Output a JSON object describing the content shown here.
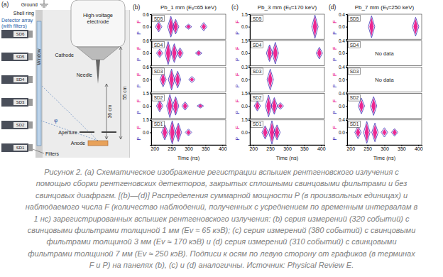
{
  "diagram": {
    "panel_label": "(a)",
    "ground": "Ground",
    "shell_ring": "Shell ring",
    "detector_array": [
      "Detector array",
      "(with filters)"
    ],
    "electrode": [
      "High-voltage",
      "electrode"
    ],
    "window": "Window",
    "cathode": "Cathode",
    "needle": "Needle",
    "distance_short": "36 cm",
    "distance_long": "55 cm",
    "angle": "φ",
    "aperture": "Aperture",
    "anode": "Anode",
    "filters": "Filters",
    "detectors": [
      "SD6",
      "SD5",
      "SD4",
      "SD3",
      "SD2",
      "SD1"
    ]
  },
  "chart_data": [
    {
      "type": "violin",
      "panel_label": "(b)",
      "title": "Pb_1 mm (Eᵥ≈65 keV)",
      "x_label": "Time (ns)",
      "xlim": [
        190,
        410
      ],
      "xticks": [
        200,
        250,
        300,
        350,
        400
      ],
      "subplots": [
        {
          "label": "SD5",
          "ylim": [
            -0.6,
            0.6
          ],
          "yticks": [
            {
              "value": 0,
              "label": "0.0"
            },
            0.6
          ],
          "x": [
            212,
            248,
            262,
            300,
            345
          ],
          "series": [
            {
              "name": "F",
              "color": "#e6007e",
              "values": [
                0.2,
                0.45,
                0.3,
                0.1,
                0.15
              ]
            },
            {
              "name": "P",
              "color": "#3b2fb5",
              "values": [
                0.25,
                0.5,
                0.35,
                0.12,
                0.2
              ]
            }
          ]
        },
        {
          "label": "SD4",
          "ylim": [
            -0.6,
            0.6
          ],
          "yticks": [
            {
              "value": 0,
              "label": "0.0"
            },
            0.6
          ],
          "x": [
            215,
            240,
            258,
            275,
            330
          ],
          "series": [
            {
              "name": "F",
              "color": "#e6007e",
              "values": [
                0.15,
                0.5,
                0.4,
                0.2,
                0.1
              ]
            },
            {
              "name": "P",
              "color": "#3b2fb5",
              "values": [
                0.2,
                0.55,
                0.45,
                0.25,
                0.12
              ]
            }
          ]
        },
        {
          "label": "SD3",
          "ylim": [
            -0.6,
            0.6
          ],
          "yticks": [
            {
              "value": 0,
              "label": "0.0"
            },
            0.6
          ],
          "x": [
            225,
            250,
            268,
            310
          ],
          "series": [
            {
              "name": "F",
              "color": "#e6007e",
              "values": [
                0.3,
                0.45,
                0.35,
                0.1
              ]
            },
            {
              "name": "P",
              "color": "#3b2fb5",
              "values": [
                0.35,
                0.5,
                0.4,
                0.15
              ]
            }
          ]
        },
        {
          "label": "SD2",
          "ylim": [
            -1.5,
            1.5
          ],
          "yticks": [
            {
              "value": 0,
              "label": "0.0"
            },
            1.5
          ],
          "x": [
            215,
            245,
            262,
            290,
            335
          ],
          "series": [
            {
              "name": "F",
              "color": "#e6007e",
              "values": [
                0.6,
                1.2,
                1.0,
                0.4,
                0.2
              ]
            },
            {
              "name": "P",
              "color": "#3b2fb5",
              "values": [
                0.7,
                1.4,
                1.1,
                0.5,
                0.25
              ]
            }
          ]
        },
        {
          "label": "SD1",
          "ylim": [
            -1.5,
            1.5
          ],
          "yticks": [
            {
              "value": 0,
              "label": "0.0"
            },
            1.5
          ],
          "x": [
            230,
            252,
            270,
            300
          ],
          "series": [
            {
              "name": "F",
              "color": "#e6007e",
              "values": [
                0.8,
                1.3,
                1.0,
                0.3
              ]
            },
            {
              "name": "P",
              "color": "#3b2fb5",
              "values": [
                0.9,
                1.4,
                1.1,
                0.4
              ]
            }
          ]
        }
      ]
    },
    {
      "type": "violin",
      "panel_label": "(c)",
      "title": "Pb_3 mm (Eᵥ≈170 keV)",
      "x_label": "Time (ns)",
      "xlim": [
        190,
        410
      ],
      "xticks": [
        200,
        250,
        300,
        350,
        400
      ],
      "subplots": [
        {
          "label": "SD5",
          "ylim": [
            -1.5,
            1.5
          ],
          "yticks": [
            {
              "value": 0,
              "label": "0.0"
            },
            1.5
          ],
          "x": [
            382
          ],
          "series": [
            {
              "name": "F",
              "color": "#e6007e",
              "values": [
                1.2
              ]
            },
            {
              "name": "P",
              "color": "#3b2fb5",
              "values": [
                1.4
              ]
            }
          ]
        },
        {
          "label": "SD4",
          "ylim": [
            -1.5,
            1.5
          ],
          "yticks": [
            {
              "value": 0,
              "label": "0.0"
            },
            1.5
          ],
          "x": [
            248,
            265,
            395
          ],
          "series": [
            {
              "name": "F",
              "color": "#e6007e",
              "values": [
                0.9,
                1.1,
                0.6
              ]
            },
            {
              "name": "P",
              "color": "#3b2fb5",
              "values": [
                1.0,
                1.3,
                0.7
              ]
            }
          ]
        },
        {
          "label": "SD3",
          "ylim": [
            -0.3,
            0.3
          ],
          "yticks": [
            {
              "value": 0,
              "label": "0.0"
            },
            0.3
          ],
          "x": [
            250
          ],
          "series": [
            {
              "name": "F",
              "color": "#e6007e",
              "values": [
                0.2
              ]
            },
            {
              "name": "P",
              "color": "#3b2fb5",
              "values": [
                0.25
              ]
            }
          ]
        },
        {
          "label": "SD2",
          "ylim": [
            -1.5,
            1.5
          ],
          "yticks": [
            {
              "value": 0,
              "label": "0.0"
            },
            1.5
          ],
          "x": [
            212,
            245,
            262,
            280
          ],
          "series": [
            {
              "name": "F",
              "color": "#e6007e",
              "values": [
                0.5,
                1.1,
                0.9,
                0.3
              ]
            },
            {
              "name": "P",
              "color": "#3b2fb5",
              "values": [
                0.6,
                1.3,
                1.0,
                0.4
              ]
            }
          ]
        },
        {
          "label": "SD1",
          "ylim": [
            -1.5,
            1.5
          ],
          "yticks": [
            {
              "value": 0,
              "label": "0.0"
            },
            1.5
          ],
          "x": [
            235,
            255,
            270
          ],
          "series": [
            {
              "name": "F",
              "color": "#e6007e",
              "values": [
                0.7,
                1.2,
                0.8
              ]
            },
            {
              "name": "P",
              "color": "#3b2fb5",
              "values": [
                0.8,
                1.4,
                0.9
              ]
            }
          ]
        }
      ]
    },
    {
      "type": "violin",
      "panel_label": "(d)",
      "title": "Pb_7 mm (Eᵥ≈250 keV)",
      "x_label": "Time (ns)",
      "xlim": [
        190,
        410
      ],
      "xticks": [
        200,
        250,
        300,
        350,
        400
      ],
      "subplots": [
        {
          "label": "SD5",
          "ylim": [
            -0.4,
            0.4
          ],
          "yticks": [
            {
              "value": 0,
              "label": "0.0"
            },
            0.4
          ],
          "x": [
            262,
            392
          ],
          "series": [
            {
              "name": "F",
              "color": "#e6007e",
              "values": [
                0.3,
                0.25
              ]
            },
            {
              "name": "P",
              "color": "#3b2fb5",
              "values": [
                0.35,
                0.3
              ]
            }
          ]
        },
        {
          "label": "SD4",
          "ylim": [
            -0.4,
            0.4
          ],
          "yticks": [
            {
              "value": 0,
              "label": "0.0"
            },
            0.4
          ],
          "x": [],
          "annotation": "No data",
          "series": [
            {
              "name": "F",
              "color": "#e6007e",
              "values": []
            },
            {
              "name": "P",
              "color": "#3b2fb5",
              "values": []
            }
          ]
        },
        {
          "label": "SD3",
          "ylim": [
            -0.4,
            0.4
          ],
          "yticks": [
            {
              "value": 0,
              "label": "0.0"
            },
            0.4
          ],
          "x": [],
          "annotation": "No data",
          "series": [
            {
              "name": "F",
              "color": "#e6007e",
              "values": []
            },
            {
              "name": "P",
              "color": "#3b2fb5",
              "values": []
            }
          ]
        },
        {
          "label": "SD2",
          "ylim": [
            -0.4,
            0.4
          ],
          "yticks": [
            {
              "value": 0,
              "label": "0.0"
            },
            0.4
          ],
          "x": [
            232,
            268
          ],
          "series": [
            {
              "name": "F",
              "color": "#e6007e",
              "values": [
                0.2,
                0.25
              ]
            },
            {
              "name": "P",
              "color": "#3b2fb5",
              "values": [
                0.25,
                0.3
              ]
            }
          ]
        },
        {
          "label": "SD1",
          "ylim": [
            -0.4,
            0.4
          ],
          "yticks": [
            {
              "value": 0,
              "label": "0.0"
            },
            0.4
          ],
          "x": [
            222,
            248,
            272,
            300,
            330
          ],
          "series": [
            {
              "name": "F",
              "color": "#e6007e",
              "values": [
                0.15,
                0.3,
                0.25,
                0.1,
                0.1
              ]
            },
            {
              "name": "P",
              "color": "#3b2fb5",
              "values": [
                0.2,
                0.35,
                0.3,
                0.15,
                0.12
              ]
            }
          ]
        }
      ]
    }
  ],
  "caption": {
    "lines": [
      "Рисунок 2. (а) Схематическое изображение регистрации вспышек рентгеновского излучения с",
      "помощью сборки рентгеновских детекторов, закрытых сплошными свинцовыми фильтрами и без",
      "свинцовых диафрагм. [(b)—(d)] Распределения суммарной мощности P (в произвольных единицах) и",
      "наблюдаемого числа F (количество наблюдений, полученных с усреднением по временным интервалам в",
      "1 нс) зарегистрированных вспышек рентгеновского излучения: (b) серия измерений (320 событий) с",
      "свинцовыми фильтрами толщиной 1 мм (Ev ≈ 65 кэВ); (c) серия измерений (380 событий) с свинцовыми",
      "фильтрами толщиной 3 мм (Ev ≈ 170 кэВ) и (d) серия измерений (310 событий) с свинцовыми",
      "фильтрами толщиной 7 мм (Ev ≈ 250 кэВ). Подписи к осям по левую сторону от графиков (в терминах",
      "F и P) на панелях (b), (c) и (d) аналогичны. Источник: Physical Review E."
    ]
  }
}
